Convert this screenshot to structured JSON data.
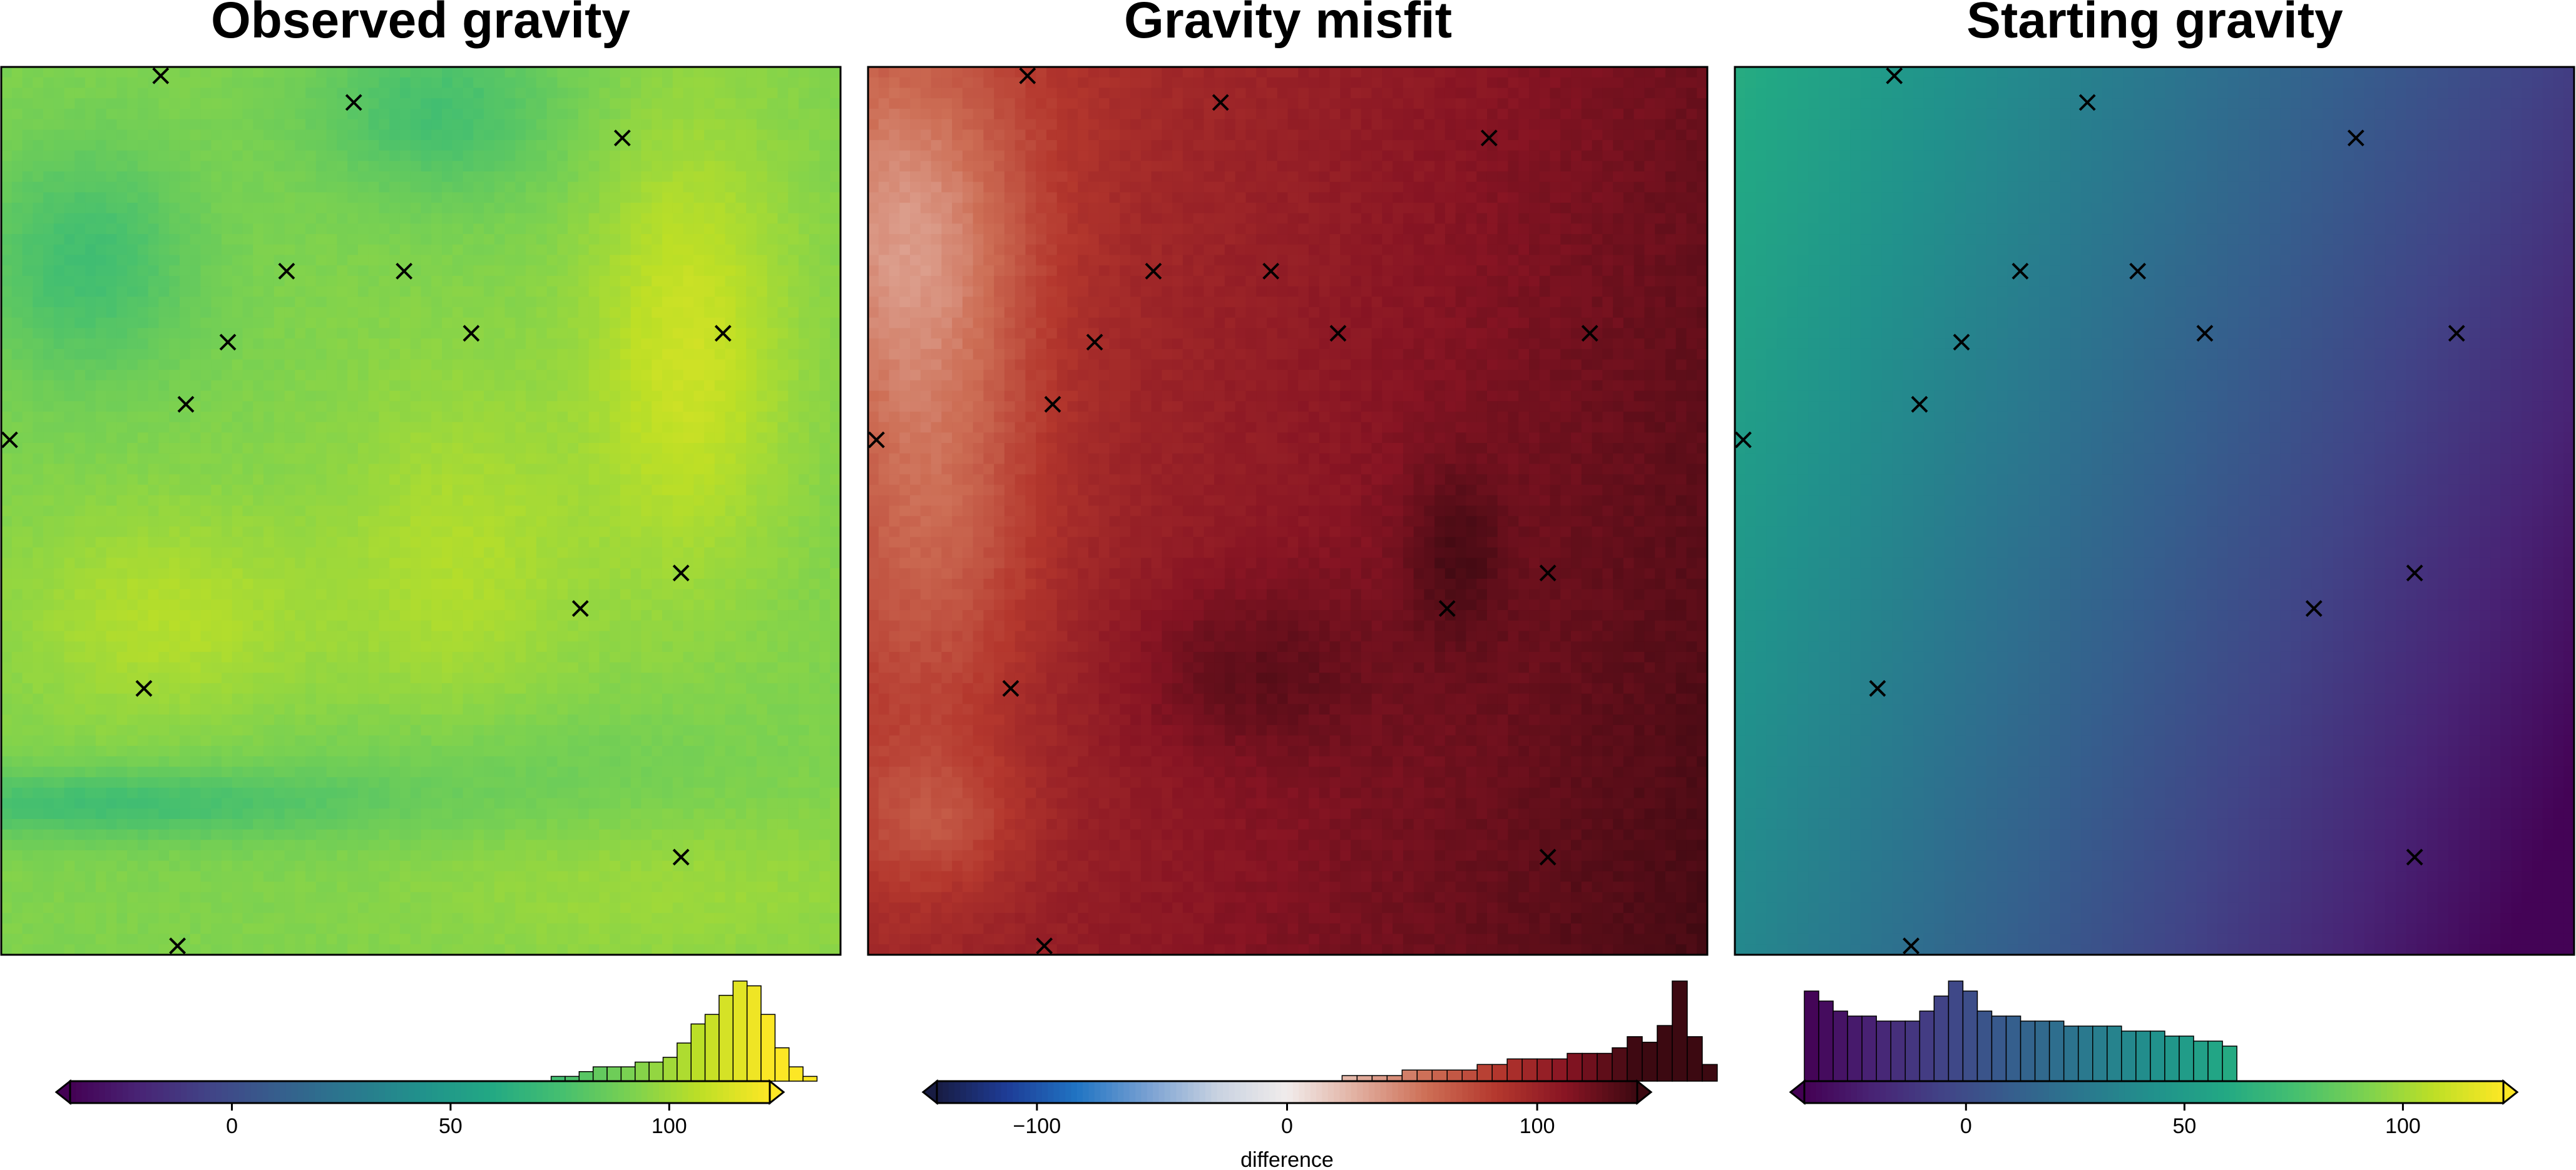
{
  "figure": {
    "panels": [
      {
        "title": "Observed gravity",
        "cmap": "viridis",
        "vmin": -37,
        "vmax": 123,
        "colorbar": {
          "ticks": [
            0,
            50,
            100
          ],
          "tick_labels": [
            "0",
            "50",
            "100"
          ],
          "label": "",
          "extend_low": true,
          "extend_high": true
        }
      },
      {
        "title": "Gravity misfit",
        "cmap": "balance",
        "vmin": -140,
        "vmax": 140,
        "colorbar": {
          "ticks": [
            -100,
            0,
            100
          ],
          "tick_labels": [
            "−100",
            "0",
            "100"
          ],
          "label": "difference",
          "extend_low": true,
          "extend_high": true
        }
      },
      {
        "title": "Starting gravity",
        "cmap": "viridis",
        "vmin": -37,
        "vmax": 123,
        "colorbar": {
          "ticks": [
            0,
            50,
            100
          ],
          "tick_labels": [
            "0",
            "50",
            "100"
          ],
          "label": "",
          "extend_low": true,
          "extend_high": true
        }
      }
    ]
  },
  "chart_data": [
    {
      "type": "heatmap",
      "title": "Observed gravity",
      "value_range": [
        65,
        122
      ],
      "colormap": "viridis",
      "colorbar_range": [
        -37,
        123
      ],
      "colorbar_ticks": [
        0,
        50,
        100
      ],
      "histogram": {
        "bins_start": 73,
        "bin_width": 3.2,
        "counts": [
          1,
          1,
          2,
          3,
          3,
          3,
          4,
          4,
          5,
          8,
          12,
          14,
          18,
          21,
          20,
          14,
          7,
          3,
          1
        ]
      },
      "stations": [
        [
          0.19,
          0.01
        ],
        [
          0.42,
          0.04
        ],
        [
          0.74,
          0.08
        ],
        [
          0.34,
          0.23
        ],
        [
          0.48,
          0.23
        ],
        [
          0.56,
          0.3
        ],
        [
          0.27,
          0.31
        ],
        [
          0.86,
          0.3
        ],
        [
          0.22,
          0.38
        ],
        [
          0.01,
          0.42
        ],
        [
          0.81,
          0.57
        ],
        [
          0.69,
          0.61
        ],
        [
          0.17,
          0.7
        ],
        [
          0.81,
          0.89
        ],
        [
          0.21,
          0.99
        ]
      ]
    },
    {
      "type": "heatmap",
      "title": "Gravity misfit",
      "value_range": [
        20,
        140
      ],
      "colormap": "balance",
      "colorbar_range": [
        -140,
        140
      ],
      "colorbar_ticks": [
        -100,
        0,
        100
      ],
      "colorbar_label": "difference",
      "histogram": {
        "bins_start": 22,
        "bin_width": 6.0,
        "counts": [
          1,
          1,
          1,
          1,
          2,
          2,
          2,
          2,
          2,
          3,
          3,
          4,
          4,
          4,
          4,
          5,
          5,
          5,
          6,
          8,
          7,
          10,
          18,
          8,
          3
        ]
      },
      "stations": [
        [
          0.19,
          0.01
        ],
        [
          0.42,
          0.04
        ],
        [
          0.74,
          0.08
        ],
        [
          0.34,
          0.23
        ],
        [
          0.48,
          0.23
        ],
        [
          0.56,
          0.3
        ],
        [
          0.27,
          0.31
        ],
        [
          0.86,
          0.3
        ],
        [
          0.22,
          0.38
        ],
        [
          0.01,
          0.42
        ],
        [
          0.81,
          0.57
        ],
        [
          0.69,
          0.61
        ],
        [
          0.17,
          0.7
        ],
        [
          0.81,
          0.89
        ],
        [
          0.21,
          0.99
        ]
      ]
    },
    {
      "type": "heatmap",
      "title": "Starting gravity",
      "value_range": [
        -36,
        62
      ],
      "colormap": "viridis",
      "colorbar_range": [
        -37,
        123
      ],
      "colorbar_ticks": [
        0,
        50,
        100
      ],
      "histogram": {
        "bins_start": -37,
        "bin_width": 3.3,
        "counts": [
          18,
          16,
          14,
          13,
          13,
          12,
          12,
          12,
          14,
          17,
          20,
          18,
          14,
          13,
          13,
          12,
          12,
          12,
          11,
          11,
          11,
          11,
          10,
          10,
          10,
          9,
          9,
          8,
          8,
          7
        ]
      },
      "stations": [
        [
          0.19,
          0.01
        ],
        [
          0.42,
          0.04
        ],
        [
          0.74,
          0.08
        ],
        [
          0.34,
          0.23
        ],
        [
          0.48,
          0.23
        ],
        [
          0.56,
          0.3
        ],
        [
          0.27,
          0.31
        ],
        [
          0.86,
          0.3
        ],
        [
          0.22,
          0.38
        ],
        [
          0.01,
          0.42
        ],
        [
          0.81,
          0.57
        ],
        [
          0.69,
          0.61
        ],
        [
          0.17,
          0.7
        ],
        [
          0.81,
          0.89
        ],
        [
          0.21,
          0.99
        ]
      ]
    }
  ]
}
